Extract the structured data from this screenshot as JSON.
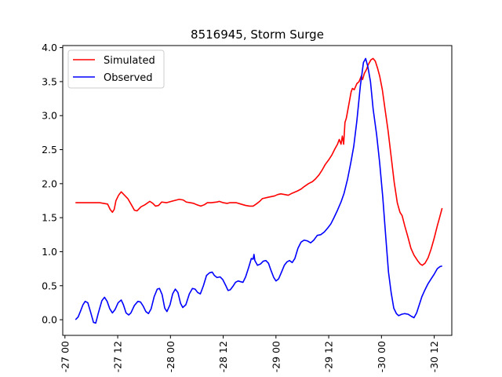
{
  "chart_data": {
    "type": "line",
    "title": "8516945, Storm Surge",
    "xlabel": "",
    "ylabel": "",
    "x_ticks_hours": [
      0,
      12,
      24,
      36,
      48,
      60,
      72,
      84
    ],
    "x_tick_labels": [
      "-27 00",
      "-27 12",
      "-28 00",
      "-28 12",
      "-29 00",
      "-29 12",
      "-30 00",
      "-30 12"
    ],
    "y_ticks": [
      0.0,
      0.5,
      1.0,
      1.5,
      2.0,
      2.5,
      3.0,
      3.5,
      4.0
    ],
    "y_tick_labels": [
      "0.0",
      "0.5",
      "1.0",
      "1.5",
      "2.0",
      "2.5",
      "3.0",
      "3.5",
      "4.0"
    ],
    "xlim_hours": [
      -0.5,
      88
    ],
    "ylim": [
      -0.23,
      4.03
    ],
    "grid": false,
    "legend": {
      "placement": "upper left"
    },
    "series": [
      {
        "name": "Simulated",
        "color": "#ff0000",
        "points": [
          [
            2.4,
            1.72
          ],
          [
            7.9,
            1.72
          ],
          [
            9.7,
            1.7
          ],
          [
            10.3,
            1.62
          ],
          [
            10.8,
            1.58
          ],
          [
            11.2,
            1.62
          ],
          [
            11.6,
            1.75
          ],
          [
            12.2,
            1.83
          ],
          [
            12.8,
            1.88
          ],
          [
            13.4,
            1.84
          ],
          [
            14.3,
            1.78
          ],
          [
            15.2,
            1.68
          ],
          [
            15.8,
            1.61
          ],
          [
            16.4,
            1.6
          ],
          [
            17.3,
            1.66
          ],
          [
            18.2,
            1.69
          ],
          [
            19.3,
            1.74
          ],
          [
            20.0,
            1.71
          ],
          [
            20.6,
            1.67
          ],
          [
            21.3,
            1.68
          ],
          [
            22.0,
            1.73
          ],
          [
            23.1,
            1.72
          ],
          [
            24.2,
            1.74
          ],
          [
            25.4,
            1.76
          ],
          [
            26.0,
            1.77
          ],
          [
            26.9,
            1.76
          ],
          [
            27.6,
            1.73
          ],
          [
            28.5,
            1.72
          ],
          [
            29.3,
            1.71
          ],
          [
            30.0,
            1.69
          ],
          [
            30.9,
            1.67
          ],
          [
            31.7,
            1.69
          ],
          [
            32.4,
            1.72
          ],
          [
            33.3,
            1.72
          ],
          [
            34.6,
            1.73
          ],
          [
            35.1,
            1.74
          ],
          [
            36.0,
            1.72
          ],
          [
            36.9,
            1.71
          ],
          [
            37.5,
            1.72
          ],
          [
            39.0,
            1.72
          ],
          [
            40.0,
            1.7
          ],
          [
            41.1,
            1.68
          ],
          [
            42.0,
            1.67
          ],
          [
            42.8,
            1.67
          ],
          [
            43.5,
            1.7
          ],
          [
            44.3,
            1.74
          ],
          [
            44.9,
            1.78
          ],
          [
            46.2,
            1.8
          ],
          [
            47.7,
            1.82
          ],
          [
            48.4,
            1.84
          ],
          [
            49.1,
            1.85
          ],
          [
            50.0,
            1.84
          ],
          [
            50.8,
            1.83
          ],
          [
            51.7,
            1.86
          ],
          [
            52.8,
            1.89
          ],
          [
            53.7,
            1.92
          ],
          [
            54.5,
            1.96
          ],
          [
            55.4,
            2.0
          ],
          [
            56.3,
            2.03
          ],
          [
            57.0,
            2.07
          ],
          [
            57.8,
            2.13
          ],
          [
            58.5,
            2.2
          ],
          [
            59.2,
            2.28
          ],
          [
            60.0,
            2.35
          ],
          [
            60.7,
            2.42
          ],
          [
            61.4,
            2.51
          ],
          [
            62.0,
            2.58
          ],
          [
            62.4,
            2.65
          ],
          [
            62.8,
            2.58
          ],
          [
            63.1,
            2.7
          ],
          [
            63.4,
            2.58
          ],
          [
            63.7,
            2.9
          ],
          [
            64.0,
            2.96
          ],
          [
            64.4,
            3.1
          ],
          [
            65.1,
            3.35
          ],
          [
            65.4,
            3.4
          ],
          [
            65.8,
            3.38
          ],
          [
            66.4,
            3.47
          ],
          [
            66.9,
            3.5
          ],
          [
            67.4,
            3.58
          ],
          [
            67.7,
            3.53
          ],
          [
            68.1,
            3.62
          ],
          [
            68.6,
            3.68
          ],
          [
            69.0,
            3.75
          ],
          [
            69.6,
            3.82
          ],
          [
            70.1,
            3.84
          ],
          [
            70.6,
            3.8
          ],
          [
            71.1,
            3.7
          ],
          [
            71.6,
            3.58
          ],
          [
            72.2,
            3.38
          ],
          [
            72.8,
            3.1
          ],
          [
            73.5,
            2.78
          ],
          [
            74.2,
            2.4
          ],
          [
            74.9,
            2.02
          ],
          [
            75.6,
            1.72
          ],
          [
            76.2,
            1.58
          ],
          [
            76.7,
            1.53
          ],
          [
            77.3,
            1.38
          ],
          [
            78.0,
            1.22
          ],
          [
            78.7,
            1.05
          ],
          [
            79.4,
            0.95
          ],
          [
            80.2,
            0.87
          ],
          [
            80.8,
            0.82
          ],
          [
            81.3,
            0.8
          ],
          [
            81.9,
            0.83
          ],
          [
            82.6,
            0.91
          ],
          [
            83.3,
            1.04
          ],
          [
            84.0,
            1.2
          ],
          [
            84.7,
            1.38
          ],
          [
            85.3,
            1.52
          ],
          [
            85.8,
            1.64
          ]
        ]
      },
      {
        "name": "Observed",
        "color": "#0000ff",
        "points": [
          [
            2.4,
            0.0
          ],
          [
            3.0,
            0.04
          ],
          [
            3.5,
            0.12
          ],
          [
            4.1,
            0.22
          ],
          [
            4.6,
            0.27
          ],
          [
            5.2,
            0.25
          ],
          [
            5.8,
            0.12
          ],
          [
            6.5,
            -0.04
          ],
          [
            7.0,
            -0.05
          ],
          [
            7.6,
            0.1
          ],
          [
            8.4,
            0.28
          ],
          [
            9.0,
            0.33
          ],
          [
            9.6,
            0.27
          ],
          [
            10.2,
            0.16
          ],
          [
            10.8,
            0.1
          ],
          [
            11.4,
            0.15
          ],
          [
            12.1,
            0.25
          ],
          [
            12.8,
            0.29
          ],
          [
            13.3,
            0.22
          ],
          [
            13.9,
            0.1
          ],
          [
            14.5,
            0.07
          ],
          [
            15.0,
            0.1
          ],
          [
            15.8,
            0.21
          ],
          [
            16.6,
            0.27
          ],
          [
            17.2,
            0.26
          ],
          [
            17.8,
            0.2
          ],
          [
            18.4,
            0.12
          ],
          [
            19.0,
            0.09
          ],
          [
            19.6,
            0.16
          ],
          [
            20.3,
            0.34
          ],
          [
            21.0,
            0.45
          ],
          [
            21.5,
            0.46
          ],
          [
            22.1,
            0.37
          ],
          [
            22.7,
            0.17
          ],
          [
            23.2,
            0.12
          ],
          [
            23.9,
            0.22
          ],
          [
            24.5,
            0.38
          ],
          [
            25.1,
            0.45
          ],
          [
            25.7,
            0.4
          ],
          [
            26.3,
            0.24
          ],
          [
            26.8,
            0.18
          ],
          [
            27.5,
            0.22
          ],
          [
            28.3,
            0.38
          ],
          [
            29.0,
            0.46
          ],
          [
            29.6,
            0.45
          ],
          [
            30.2,
            0.4
          ],
          [
            30.8,
            0.38
          ],
          [
            31.5,
            0.5
          ],
          [
            32.2,
            0.65
          ],
          [
            32.9,
            0.69
          ],
          [
            33.5,
            0.7
          ],
          [
            34.0,
            0.65
          ],
          [
            34.6,
            0.62
          ],
          [
            35.3,
            0.63
          ],
          [
            35.9,
            0.59
          ],
          [
            36.6,
            0.5
          ],
          [
            37.1,
            0.43
          ],
          [
            37.6,
            0.44
          ],
          [
            38.2,
            0.49
          ],
          [
            38.8,
            0.55
          ],
          [
            39.4,
            0.57
          ],
          [
            39.9,
            0.56
          ],
          [
            40.5,
            0.55
          ],
          [
            41.1,
            0.63
          ],
          [
            41.8,
            0.77
          ],
          [
            42.4,
            0.9
          ],
          [
            42.8,
            0.89
          ],
          [
            43.0,
            0.96
          ],
          [
            43.2,
            0.87
          ],
          [
            43.8,
            0.8
          ],
          [
            44.5,
            0.82
          ],
          [
            45.1,
            0.86
          ],
          [
            45.7,
            0.87
          ],
          [
            46.3,
            0.83
          ],
          [
            46.9,
            0.72
          ],
          [
            47.5,
            0.62
          ],
          [
            48.0,
            0.57
          ],
          [
            48.6,
            0.6
          ],
          [
            49.2,
            0.69
          ],
          [
            49.9,
            0.8
          ],
          [
            50.5,
            0.85
          ],
          [
            51.1,
            0.87
          ],
          [
            51.7,
            0.84
          ],
          [
            52.3,
            0.9
          ],
          [
            53.0,
            1.05
          ],
          [
            53.7,
            1.14
          ],
          [
            54.4,
            1.17
          ],
          [
            55.1,
            1.16
          ],
          [
            55.9,
            1.13
          ],
          [
            56.6,
            1.17
          ],
          [
            57.4,
            1.24
          ],
          [
            58.2,
            1.25
          ],
          [
            59.0,
            1.29
          ],
          [
            59.8,
            1.35
          ],
          [
            60.5,
            1.41
          ],
          [
            61.2,
            1.5
          ],
          [
            62.0,
            1.61
          ],
          [
            62.8,
            1.73
          ],
          [
            63.5,
            1.86
          ],
          [
            64.3,
            2.07
          ],
          [
            65.0,
            2.3
          ],
          [
            65.7,
            2.55
          ],
          [
            66.4,
            2.92
          ],
          [
            67.2,
            3.44
          ],
          [
            67.9,
            3.78
          ],
          [
            68.4,
            3.84
          ],
          [
            68.9,
            3.72
          ],
          [
            69.5,
            3.5
          ],
          [
            70.1,
            3.1
          ],
          [
            70.9,
            2.72
          ],
          [
            71.6,
            2.3
          ],
          [
            72.3,
            1.8
          ],
          [
            73.0,
            1.2
          ],
          [
            73.6,
            0.7
          ],
          [
            74.2,
            0.4
          ],
          [
            74.8,
            0.17
          ],
          [
            75.4,
            0.09
          ],
          [
            75.9,
            0.06
          ],
          [
            76.6,
            0.08
          ],
          [
            77.3,
            0.09
          ],
          [
            78.1,
            0.08
          ],
          [
            78.8,
            0.05
          ],
          [
            79.4,
            0.03
          ],
          [
            80.0,
            0.1
          ],
          [
            80.6,
            0.22
          ],
          [
            81.2,
            0.34
          ],
          [
            81.9,
            0.44
          ],
          [
            82.6,
            0.53
          ],
          [
            83.3,
            0.6
          ],
          [
            84.0,
            0.67
          ],
          [
            84.7,
            0.75
          ],
          [
            85.3,
            0.78
          ],
          [
            85.8,
            0.79
          ]
        ]
      }
    ]
  }
}
